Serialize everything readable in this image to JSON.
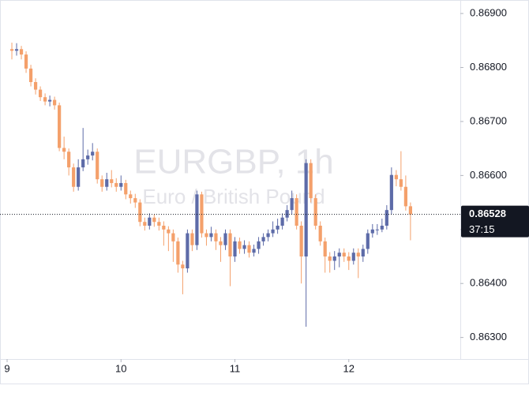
{
  "chart_data": {
    "type": "candlestick",
    "watermark": "EURGBP, 1h",
    "watermark_subtitle": "Euro / British Pound",
    "up_color": "#5d6ba8",
    "down_color": "#f4a06b",
    "x": [
      1,
      2,
      3,
      4,
      5,
      6,
      7,
      8,
      9,
      10,
      11,
      12,
      13,
      14,
      15,
      16,
      17,
      18,
      19,
      20,
      21,
      22,
      23,
      24,
      25,
      26,
      27,
      28,
      29,
      30,
      31,
      32,
      33,
      34,
      35,
      36,
      37,
      38,
      39,
      40,
      41,
      42,
      43,
      44,
      45,
      46,
      47,
      48,
      49,
      50,
      51,
      52,
      53,
      54,
      55,
      56,
      57,
      58,
      59,
      60,
      61,
      62,
      63,
      64,
      65,
      66,
      67,
      68,
      69,
      70,
      71,
      72,
      73,
      74,
      75,
      76,
      77,
      78,
      79,
      80,
      81,
      82,
      83,
      84,
      85
    ],
    "open": [
      0.86834,
      0.86831,
      0.86834,
      0.86824,
      0.86798,
      0.86773,
      0.86759,
      0.86745,
      0.86737,
      0.8674,
      0.8673,
      0.86651,
      0.86644,
      0.86615,
      0.86579,
      0.86615,
      0.8663,
      0.86637,
      0.86644,
      0.86593,
      0.86579,
      0.86593,
      0.86586,
      0.86579,
      0.86586,
      0.86565,
      0.86558,
      0.8655,
      0.86514,
      0.86507,
      0.86522,
      0.86514,
      0.86507,
      0.865,
      0.86493,
      0.86478,
      0.86435,
      0.86428,
      0.86493,
      0.86471,
      0.86565,
      0.86493,
      0.86486,
      0.86493,
      0.86478,
      0.86471,
      0.86493,
      0.8645,
      0.86478,
      0.86464,
      0.86471,
      0.86457,
      0.86464,
      0.86478,
      0.86486,
      0.86493,
      0.865,
      0.86507,
      0.86522,
      0.86536,
      0.86558,
      0.86507,
      0.8645,
      0.86623,
      0.86558,
      0.86507,
      0.86478,
      0.8645,
      0.86442,
      0.8645,
      0.86457,
      0.8645,
      0.86442,
      0.86457,
      0.8645,
      0.86464,
      0.86493,
      0.865,
      0.865,
      0.86507,
      0.86536,
      0.86601,
      0.86593,
      0.86579,
      0.86543
    ],
    "high": [
      0.86846,
      0.86845,
      0.8684,
      0.8683,
      0.86805,
      0.8678,
      0.86765,
      0.86752,
      0.86748,
      0.86746,
      0.86735,
      0.86672,
      0.8665,
      0.86622,
      0.8663,
      0.86688,
      0.86648,
      0.8666,
      0.8665,
      0.866,
      0.86605,
      0.8661,
      0.86595,
      0.866,
      0.86592,
      0.86572,
      0.86566,
      0.86556,
      0.86522,
      0.8653,
      0.86528,
      0.86522,
      0.86515,
      0.86506,
      0.865,
      0.86485,
      0.86442,
      0.865,
      0.865,
      0.86572,
      0.8657,
      0.865,
      0.86505,
      0.865,
      0.86486,
      0.865,
      0.865,
      0.86486,
      0.86485,
      0.8648,
      0.86478,
      0.86472,
      0.86486,
      0.86493,
      0.865,
      0.86515,
      0.8652,
      0.8653,
      0.86545,
      0.86572,
      0.86565,
      0.86515,
      0.8663,
      0.8663,
      0.86565,
      0.86515,
      0.86485,
      0.86458,
      0.8646,
      0.86465,
      0.86465,
      0.86458,
      0.86465,
      0.86465,
      0.86472,
      0.865,
      0.8651,
      0.8651,
      0.8652,
      0.86545,
      0.86615,
      0.8661,
      0.86645,
      0.866,
      0.8655
    ],
    "low": [
      0.86815,
      0.86822,
      0.86815,
      0.8679,
      0.86765,
      0.8675,
      0.86738,
      0.8673,
      0.86728,
      0.86722,
      0.86645,
      0.8663,
      0.866,
      0.8657,
      0.86572,
      0.86608,
      0.8662,
      0.86628,
      0.86585,
      0.8657,
      0.86572,
      0.86578,
      0.8657,
      0.86572,
      0.86556,
      0.86548,
      0.8654,
      0.86506,
      0.86498,
      0.865,
      0.86505,
      0.86498,
      0.8647,
      0.8646,
      0.8644,
      0.8642,
      0.8638,
      0.8642,
      0.8646,
      0.86462,
      0.86485,
      0.8647,
      0.86478,
      0.86462,
      0.8644,
      0.86462,
      0.86395,
      0.8644,
      0.86455,
      0.86455,
      0.86448,
      0.8645,
      0.86455,
      0.8647,
      0.86478,
      0.86486,
      0.86492,
      0.865,
      0.86515,
      0.86528,
      0.865,
      0.864,
      0.8632,
      0.8655,
      0.865,
      0.8647,
      0.8642,
      0.8642,
      0.86425,
      0.8643,
      0.8644,
      0.86425,
      0.86435,
      0.8641,
      0.8644,
      0.86455,
      0.86485,
      0.8649,
      0.86495,
      0.865,
      0.86528,
      0.8658,
      0.86572,
      0.86535,
      0.8648
    ],
    "close": [
      0.86831,
      0.86834,
      0.86824,
      0.86798,
      0.86773,
      0.86759,
      0.86745,
      0.86737,
      0.8674,
      0.8673,
      0.86651,
      0.86644,
      0.86615,
      0.86579,
      0.86615,
      0.8663,
      0.86637,
      0.86644,
      0.86593,
      0.86579,
      0.86593,
      0.86586,
      0.86579,
      0.86586,
      0.86565,
      0.86558,
      0.8655,
      0.86514,
      0.86507,
      0.86522,
      0.86514,
      0.86507,
      0.865,
      0.86493,
      0.86478,
      0.86435,
      0.86428,
      0.86493,
      0.86471,
      0.86565,
      0.86493,
      0.86486,
      0.86493,
      0.86478,
      0.86471,
      0.86493,
      0.8645,
      0.86478,
      0.86464,
      0.86471,
      0.86457,
      0.86464,
      0.86478,
      0.86486,
      0.86493,
      0.865,
      0.86507,
      0.86522,
      0.86536,
      0.86558,
      0.86507,
      0.8645,
      0.86623,
      0.86558,
      0.86507,
      0.86478,
      0.8645,
      0.86442,
      0.8645,
      0.86457,
      0.8645,
      0.86442,
      0.86457,
      0.8645,
      0.86464,
      0.86493,
      0.865,
      0.865,
      0.86507,
      0.86536,
      0.86601,
      0.86593,
      0.86579,
      0.86543,
      0.86528
    ],
    "xlim": [
      -1.5,
      95.5
    ],
    "xticks": [
      {
        "value": 0,
        "label": "9"
      },
      {
        "value": 24,
        "label": "10"
      },
      {
        "value": 48,
        "label": "11"
      },
      {
        "value": 72,
        "label": "12"
      }
    ],
    "ylim": [
      0.8626,
      0.86925
    ],
    "yticks": [
      {
        "value": 0.863,
        "label": "0.86300"
      },
      {
        "value": 0.864,
        "label": "0.86400"
      },
      {
        "value": 0.865,
        "label": "0.86500"
      },
      {
        "value": 0.866,
        "label": "0.86600"
      },
      {
        "value": 0.867,
        "label": "0.86700"
      },
      {
        "value": 0.868,
        "label": "0.86800"
      },
      {
        "value": 0.869,
        "label": "0.86900"
      }
    ],
    "last_price": 0.86528,
    "countdown": "37:15"
  }
}
